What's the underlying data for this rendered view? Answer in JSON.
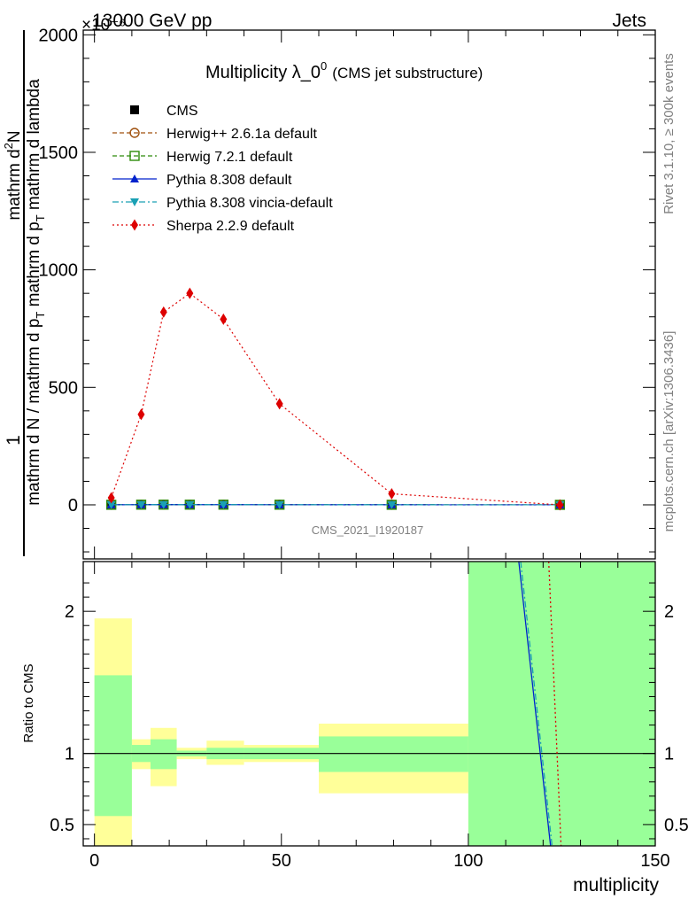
{
  "header": {
    "left": "13000 GeV pp",
    "right": "Jets",
    "exponent": "×10⁻⁶"
  },
  "side_labels": {
    "rivet": "Rivet 3.1.10, ≥ 300k events",
    "mcplots": "mcplots.cern.ch [arXiv:1306.3436]"
  },
  "watermark": "CMS_2021_I1920187",
  "ratio_ylabel": "Ratio to CMS",
  "chart_data": {
    "type": "line",
    "title": "Multiplicity λ_0⁰",
    "title_main": "Multiplicity λ_0",
    "title_sup": "0",
    "subtitle": "(CMS jet substructure)",
    "xlabel": "multiplicity",
    "ylabel_top": "1",
    "ylabel_fraction_numerator": "mathrm d²N",
    "ylabel_numerator_main": "mathrm d",
    "ylabel_numerator_sup": "2",
    "ylabel_numerator_end": "N",
    "ylabel_denominator": "mathrm d N / mathrm d p_T mathrm d p_T mathrm d lambda",
    "ylabel_denominator_bottom": "mathrm d N / mathrm d p",
    "ylabel_denominator_sub1": "T",
    "ylabel_denominator_mid": " mathrm d p",
    "ylabel_denominator_sub2": "T",
    "ylabel_denominator_end": " mathrm d lambda",
    "xlim": [
      -3,
      150
    ],
    "ylim": [
      -230,
      2020
    ],
    "x_ticks": [
      0,
      50,
      100,
      150
    ],
    "y_ticks": [
      0,
      500,
      1000,
      1500,
      2000
    ],
    "y_tick_labels": [
      "0",
      "500",
      "1000",
      "1500",
      "2000"
    ],
    "y_unit_factor": "×10⁻⁶",
    "ratio_ylim": [
      0.35,
      2.35
    ],
    "ratio_y_ticks": [
      0.5,
      1,
      2
    ],
    "ratio_y_tick_labels": [
      "0.5",
      "1",
      "2"
    ],
    "x_points": [
      4.5,
      12.5,
      18.5,
      25.5,
      34.5,
      49.5,
      79.5,
      124.5
    ],
    "bin_edges": [
      0,
      10,
      15,
      22,
      30,
      40,
      60,
      100,
      150
    ],
    "legend": [
      {
        "label": "CMS",
        "color": "#000000",
        "marker": "square-filled",
        "dash": "solid"
      },
      {
        "label": "Herwig++ 2.6.1a default",
        "color": "#a0520f",
        "marker": "circle-open",
        "dash": "dashed"
      },
      {
        "label": "Herwig 7.2.1 default",
        "color": "#2e8b0a",
        "marker": "square-open",
        "dash": "dashed"
      },
      {
        "label": "Pythia 8.308 default",
        "color": "#0022cc",
        "marker": "triangle-up",
        "dash": "solid"
      },
      {
        "label": "Pythia 8.308 vincia-default",
        "color": "#1aa0b4",
        "marker": "triangle-down",
        "dash": "dashdot"
      },
      {
        "label": "Sherpa 2.2.9 default",
        "color": "#dd0000",
        "marker": "diamond",
        "dash": "dotted"
      }
    ],
    "series": [
      {
        "name": "CMS",
        "values": [
          0.3,
          0.8,
          0.9,
          0.85,
          0.8,
          0.6,
          0.3,
          0.05
        ]
      },
      {
        "name": "Herwig++ 2.6.1a default",
        "values": [
          0.3,
          0.8,
          0.9,
          0.85,
          0.8,
          0.6,
          0.3,
          0.05
        ]
      },
      {
        "name": "Herwig 7.2.1 default",
        "values": [
          0.3,
          0.8,
          0.9,
          0.85,
          0.8,
          0.6,
          0.3,
          0.05
        ]
      },
      {
        "name": "Pythia 8.308 default",
        "values": [
          0.3,
          0.8,
          0.9,
          0.85,
          0.8,
          0.6,
          0.3,
          0.05
        ]
      },
      {
        "name": "Pythia 8.308 vincia-default",
        "values": [
          0.3,
          0.8,
          0.9,
          0.85,
          0.8,
          0.6,
          0.3,
          0.05
        ]
      },
      {
        "name": "Sherpa 2.2.9 default",
        "values": [
          30,
          385,
          820,
          900,
          790,
          430,
          47,
          0
        ]
      }
    ],
    "ratio_bands": {
      "yellow": [
        [
          0.32,
          1.95
        ],
        [
          0.89,
          1.1
        ],
        [
          0.77,
          1.18
        ],
        [
          0.96,
          1.04
        ],
        [
          0.92,
          1.09
        ],
        [
          0.94,
          1.06
        ],
        [
          0.72,
          1.21
        ],
        [
          0.32,
          2.4
        ]
      ],
      "green": [
        [
          0.56,
          1.55
        ],
        [
          0.94,
          1.06
        ],
        [
          0.89,
          1.1
        ],
        [
          0.98,
          1.02
        ],
        [
          0.96,
          1.04
        ],
        [
          0.96,
          1.04
        ],
        [
          0.87,
          1.12
        ],
        [
          0.32,
          2.4
        ]
      ]
    },
    "ratio_lines": [
      {
        "name": "Pythia 8.308 default",
        "x": [
          113.5,
          122
        ],
        "values": [
          2.4,
          0.35
        ]
      },
      {
        "name": "Pythia 8.308 vincia-default",
        "x": [
          114,
          122.4
        ],
        "values": [
          2.4,
          0.35
        ]
      },
      {
        "name": "Sherpa 2.2.9 default",
        "x": [
          121.5,
          124.8
        ],
        "values": [
          2.4,
          0.35
        ]
      }
    ]
  }
}
